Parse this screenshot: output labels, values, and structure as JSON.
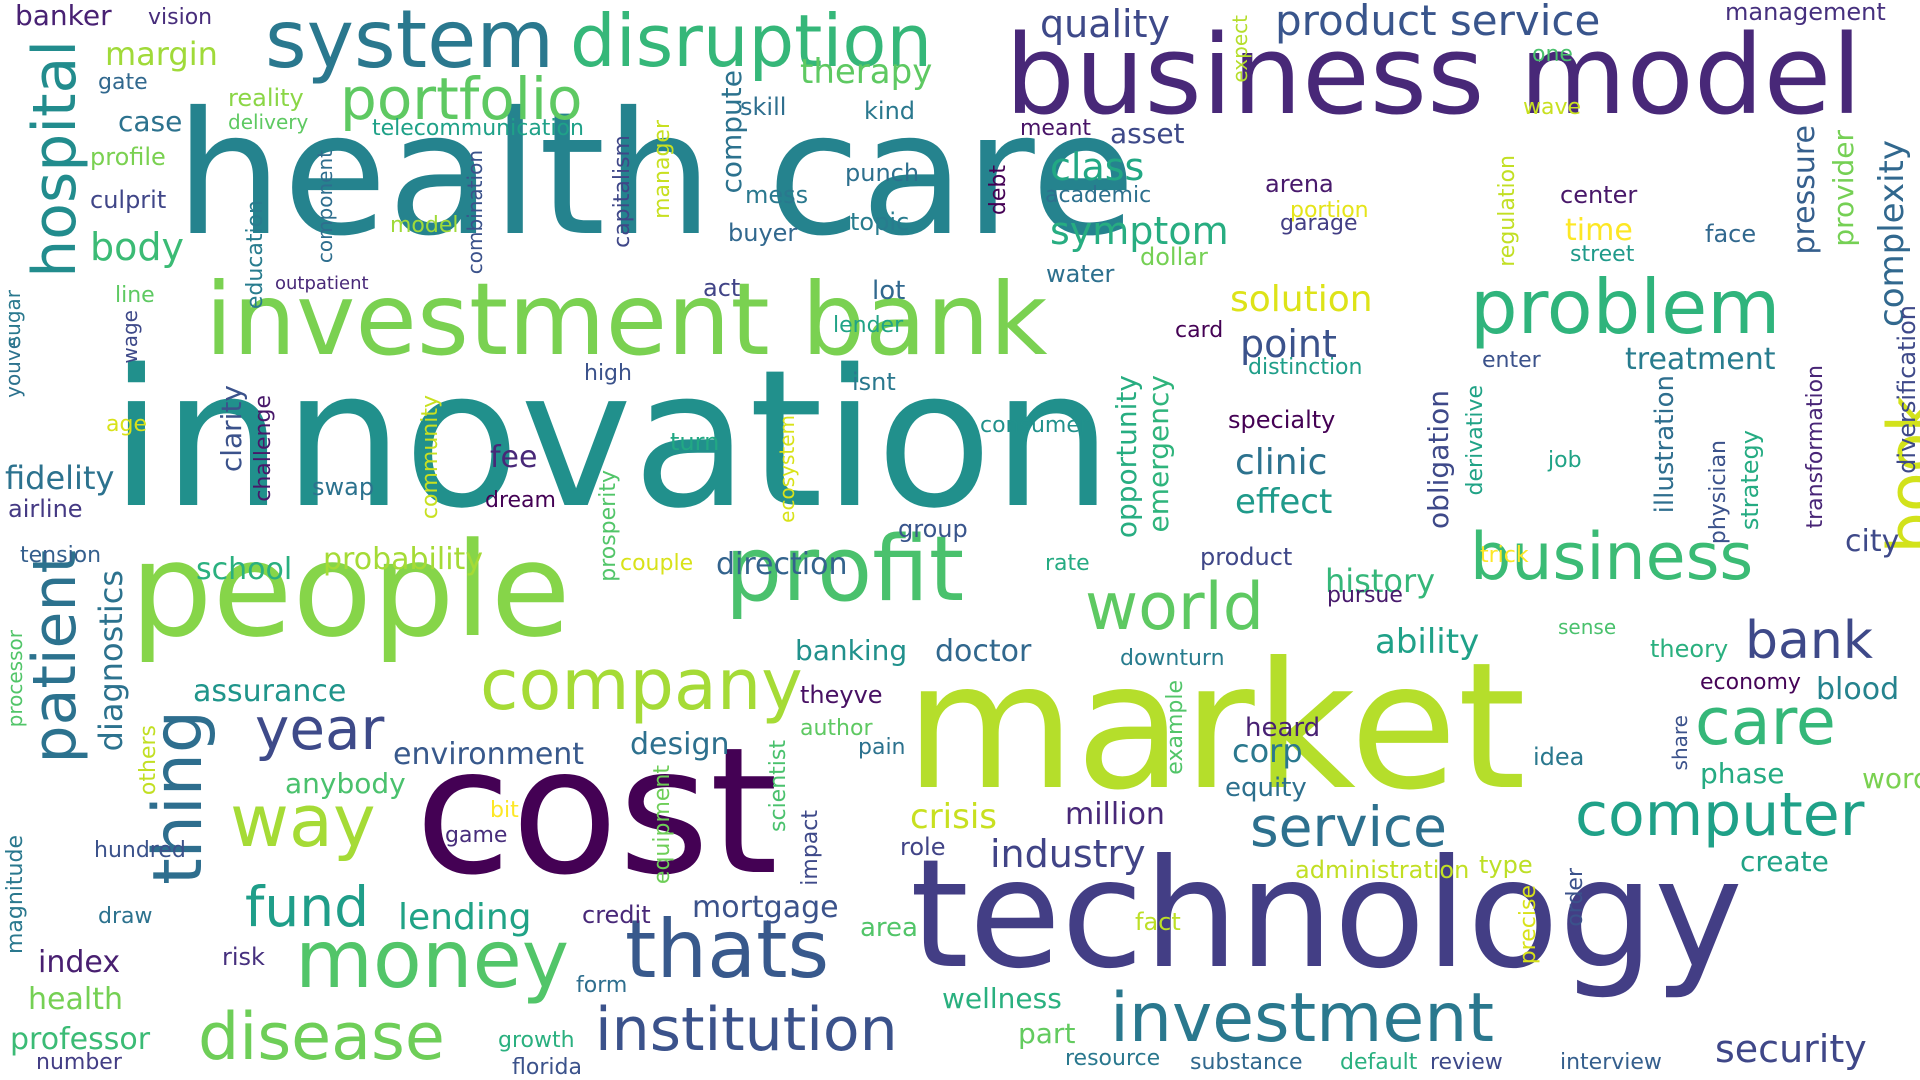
{
  "words": [
    {
      "text": "innovation",
      "color": "#21908c"
    },
    {
      "text": "health care",
      "color": "#25838e"
    },
    {
      "text": "business model",
      "color": "#482878"
    },
    {
      "text": "market",
      "color": "#b5de2b"
    },
    {
      "text": "cost",
      "color": "#440154"
    },
    {
      "text": "technology",
      "color": "#433e85"
    },
    {
      "text": "people",
      "color": "#86d549"
    },
    {
      "text": "investment bank",
      "color": "#7ad151"
    },
    {
      "text": "system",
      "color": "#2a788e"
    },
    {
      "text": "disruption",
      "color": "#35b779"
    },
    {
      "text": "portfolio",
      "color": "#5ec962"
    },
    {
      "text": "problem",
      "color": "#2fb47c"
    },
    {
      "text": "hospital",
      "color": "#228c8d"
    },
    {
      "text": "patient",
      "color": "#2c728e"
    },
    {
      "text": "thing",
      "color": "#2e6e8e"
    },
    {
      "text": "profit",
      "color": "#4ac16d"
    },
    {
      "text": "company",
      "color": "#a5db36"
    },
    {
      "text": "business",
      "color": "#3bbb75"
    },
    {
      "text": "world",
      "color": "#5ec962"
    },
    {
      "text": "bank",
      "color": "#3e4989"
    },
    {
      "text": "care",
      "color": "#35b779"
    },
    {
      "text": "computer",
      "color": "#1fa188"
    },
    {
      "text": "money",
      "color": "#52c569"
    },
    {
      "text": "thats",
      "color": "#38598c"
    },
    {
      "text": "way",
      "color": "#a5db36"
    },
    {
      "text": "year",
      "color": "#3e4a89"
    },
    {
      "text": "fund",
      "color": "#1f9e89"
    },
    {
      "text": "disease",
      "color": "#6ece58"
    },
    {
      "text": "institution",
      "color": "#3b528b"
    },
    {
      "text": "investment",
      "color": "#2a788e"
    },
    {
      "text": "service",
      "color": "#2d708e"
    },
    {
      "text": "security",
      "color": "#3f4788"
    },
    {
      "text": "industry",
      "color": "#414487"
    },
    {
      "text": "book",
      "color": "#d2e21b"
    },
    {
      "text": "complexity",
      "color": "#31688e"
    },
    {
      "text": "pressure",
      "color": "#355f8d"
    },
    {
      "text": "provider",
      "color": "#75d054"
    },
    {
      "text": "diagnostics",
      "color": "#2c728e"
    },
    {
      "text": "quality",
      "color": "#3e4989"
    },
    {
      "text": "product service",
      "color": "#39558c"
    },
    {
      "text": "management",
      "color": "#46307e"
    },
    {
      "text": "banker",
      "color": "#482173"
    },
    {
      "text": "vision",
      "color": "#472d7b"
    },
    {
      "text": "margin",
      "color": "#a0da39"
    },
    {
      "text": "therapy",
      "color": "#5ec962"
    },
    {
      "text": "gate",
      "color": "#31688e"
    },
    {
      "text": "reality",
      "color": "#8bd646"
    },
    {
      "text": "delivery",
      "color": "#5ec962"
    },
    {
      "text": "case",
      "color": "#2c728e"
    },
    {
      "text": "telecommunication",
      "color": "#1fa188"
    },
    {
      "text": "profile",
      "color": "#7ad151"
    },
    {
      "text": "culprit",
      "color": "#404688"
    },
    {
      "text": "body",
      "color": "#3bbb75"
    },
    {
      "text": "class",
      "color": "#22a884"
    },
    {
      "text": "symptom",
      "color": "#27ad81"
    },
    {
      "text": "solution",
      "color": "#dde318"
    },
    {
      "text": "point",
      "color": "#3b528b"
    },
    {
      "text": "treatment",
      "color": "#287c8e"
    },
    {
      "text": "clinic",
      "color": "#2c728e"
    },
    {
      "text": "effect",
      "color": "#1f9a8a"
    },
    {
      "text": "fidelity",
      "color": "#2c728e"
    },
    {
      "text": "airline",
      "color": "#443983"
    },
    {
      "text": "tension",
      "color": "#355f8d"
    },
    {
      "text": "school",
      "color": "#2ab07f"
    },
    {
      "text": "probability",
      "color": "#a5db36"
    },
    {
      "text": "direction",
      "color": "#33638d"
    },
    {
      "text": "history",
      "color": "#35b779"
    },
    {
      "text": "ability",
      "color": "#1fa188"
    },
    {
      "text": "city",
      "color": "#3e4989"
    },
    {
      "text": "assurance",
      "color": "#1f958b"
    },
    {
      "text": "banking",
      "color": "#21918c"
    },
    {
      "text": "doctor",
      "color": "#31688e"
    },
    {
      "text": "environment",
      "color": "#38598c"
    },
    {
      "text": "design",
      "color": "#2d708e"
    },
    {
      "text": "anybody",
      "color": "#4ac16d"
    },
    {
      "text": "crisis",
      "color": "#c8e020"
    },
    {
      "text": "million",
      "color": "#482878"
    },
    {
      "text": "lending",
      "color": "#20a386"
    },
    {
      "text": "mortgage",
      "color": "#3b528b"
    },
    {
      "text": "index",
      "color": "#481f70"
    },
    {
      "text": "health",
      "color": "#75d054"
    },
    {
      "text": "professor",
      "color": "#3bbb75"
    },
    {
      "text": "number",
      "color": "#433e85"
    },
    {
      "text": "growth",
      "color": "#2ab07f"
    },
    {
      "text": "florida",
      "color": "#3b528b"
    },
    {
      "text": "wellness",
      "color": "#2ab07f"
    },
    {
      "text": "part",
      "color": "#63cb5f"
    },
    {
      "text": "resource",
      "color": "#2a788e"
    },
    {
      "text": "substance",
      "color": "#31688e"
    },
    {
      "text": "default",
      "color": "#2ab07f"
    },
    {
      "text": "review",
      "color": "#3e4989"
    },
    {
      "text": "interview",
      "color": "#355f8d"
    },
    {
      "text": "phase",
      "color": "#25ab82"
    },
    {
      "text": "word",
      "color": "#7ad151"
    },
    {
      "text": "create",
      "color": "#20a386"
    },
    {
      "text": "blood",
      "color": "#25838e"
    },
    {
      "text": "economy",
      "color": "#450457"
    },
    {
      "text": "theory",
      "color": "#2ab07f"
    },
    {
      "text": "sense",
      "color": "#4ac16d"
    },
    {
      "text": "share",
      "color": "#3b528b"
    },
    {
      "text": "idea",
      "color": "#2a788e"
    },
    {
      "text": "corp",
      "color": "#2a788e"
    },
    {
      "text": "equity",
      "color": "#2d708e"
    },
    {
      "text": "heard",
      "color": "#482173"
    },
    {
      "text": "example",
      "color": "#52c569"
    },
    {
      "text": "administration",
      "color": "#c2df23"
    },
    {
      "text": "type",
      "color": "#bddf26"
    },
    {
      "text": "order",
      "color": "#3b528b"
    },
    {
      "text": "precise",
      "color": "#d8e219"
    },
    {
      "text": "fact",
      "color": "#bddf26"
    },
    {
      "text": "area",
      "color": "#52c569"
    },
    {
      "text": "credit",
      "color": "#482878"
    },
    {
      "text": "draw",
      "color": "#2c728e"
    },
    {
      "text": "risk",
      "color": "#46307e"
    },
    {
      "text": "form",
      "color": "#2e6e8e"
    },
    {
      "text": "hundred",
      "color": "#3b528b"
    },
    {
      "text": "magnitude",
      "color": "#2a788e"
    },
    {
      "text": "processor",
      "color": "#52c569"
    },
    {
      "text": "game",
      "color": "#472d7b"
    },
    {
      "text": "bit",
      "color": "#fde725"
    },
    {
      "text": "role",
      "color": "#414487"
    },
    {
      "text": "pain",
      "color": "#2c728e"
    },
    {
      "text": "author",
      "color": "#5ec962"
    },
    {
      "text": "theyve",
      "color": "#471063"
    },
    {
      "text": "downturn",
      "color": "#287c8e"
    },
    {
      "text": "others",
      "color": "#c2df23"
    },
    {
      "text": "equipment",
      "color": "#6ece58"
    },
    {
      "text": "scientist",
      "color": "#4ac16d"
    },
    {
      "text": "impact",
      "color": "#3e4989"
    },
    {
      "text": "couple",
      "color": "#d8e219"
    },
    {
      "text": "prosperity",
      "color": "#52c569"
    },
    {
      "text": "rate",
      "color": "#25ab82"
    },
    {
      "text": "product",
      "color": "#3f4788"
    },
    {
      "text": "pursue",
      "color": "#481a6c"
    },
    {
      "text": "trick",
      "color": "#fde725"
    },
    {
      "text": "group",
      "color": "#39558c"
    },
    {
      "text": "dream",
      "color": "#440154"
    },
    {
      "text": "swap",
      "color": "#2c728e"
    },
    {
      "text": "fee",
      "color": "#482878"
    },
    {
      "text": "clarity",
      "color": "#3b528b"
    },
    {
      "text": "challenge",
      "color": "#48186a"
    },
    {
      "text": "community",
      "color": "#c8e020"
    },
    {
      "text": "ecosystem",
      "color": "#d8e219"
    },
    {
      "text": "opportunity",
      "color": "#27ad81"
    },
    {
      "text": "emergency",
      "color": "#2fb47c"
    },
    {
      "text": "consumer",
      "color": "#21918c"
    },
    {
      "text": "specialty",
      "color": "#440154"
    },
    {
      "text": "obligation",
      "color": "#3e4989"
    },
    {
      "text": "derivative",
      "color": "#20a386"
    },
    {
      "text": "illustration",
      "color": "#2e6e8e"
    },
    {
      "text": "physician",
      "color": "#3b528b"
    },
    {
      "text": "strategy",
      "color": "#25ab82"
    },
    {
      "text": "transformation",
      "color": "#482576"
    },
    {
      "text": "diversification",
      "color": "#3e4989"
    },
    {
      "text": "job",
      "color": "#20a386"
    },
    {
      "text": "turn",
      "color": "#22a884"
    },
    {
      "text": "isnt",
      "color": "#2a788e"
    },
    {
      "text": "high",
      "color": "#3b528b"
    },
    {
      "text": "age",
      "color": "#d8e219"
    },
    {
      "text": "youve",
      "color": "#2c728e"
    },
    {
      "text": "sugar",
      "color": "#2a788e"
    },
    {
      "text": "wage",
      "color": "#3e4989"
    },
    {
      "text": "line",
      "color": "#5ec962"
    },
    {
      "text": "outpatient",
      "color": "#482878"
    },
    {
      "text": "education",
      "color": "#287c8e"
    },
    {
      "text": "component",
      "color": "#2e6e8e"
    },
    {
      "text": "combination",
      "color": "#3b528b"
    },
    {
      "text": "model",
      "color": "#a0da39"
    },
    {
      "text": "capitalism",
      "color": "#3f4788"
    },
    {
      "text": "manager",
      "color": "#c8e020"
    },
    {
      "text": "act",
      "color": "#414487"
    },
    {
      "text": "lot",
      "color": "#31688e"
    },
    {
      "text": "lender",
      "color": "#20a386"
    },
    {
      "text": "card",
      "color": "#440154"
    },
    {
      "text": "distinction",
      "color": "#1f9e89"
    },
    {
      "text": "enter",
      "color": "#3b528b"
    },
    {
      "text": "water",
      "color": "#2d708e"
    },
    {
      "text": "dollar",
      "color": "#75d054"
    },
    {
      "text": "academic",
      "color": "#2d708e"
    },
    {
      "text": "portion",
      "color": "#e5e419"
    },
    {
      "text": "garage",
      "color": "#433e85"
    },
    {
      "text": "arena",
      "color": "#481a6c"
    },
    {
      "text": "regulation",
      "color": "#c2df23"
    },
    {
      "text": "time",
      "color": "#fde725"
    },
    {
      "text": "street",
      "color": "#1f9a8a"
    },
    {
      "text": "face",
      "color": "#31688e"
    },
    {
      "text": "center",
      "color": "#481769"
    },
    {
      "text": "debt",
      "color": "#440154"
    },
    {
      "text": "meant",
      "color": "#481467"
    },
    {
      "text": "asset",
      "color": "#3e4989"
    },
    {
      "text": "kind",
      "color": "#2a788e"
    },
    {
      "text": "skill",
      "color": "#2e6e8e"
    },
    {
      "text": "punch",
      "color": "#2d708e"
    },
    {
      "text": "topic",
      "color": "#287c8e"
    },
    {
      "text": "compute",
      "color": "#2c728e"
    },
    {
      "text": "mess",
      "color": "#2a788e"
    },
    {
      "text": "buyer",
      "color": "#31688e"
    },
    {
      "text": "one",
      "color": "#4ac16d"
    },
    {
      "text": "expect",
      "color": "#b5de2b"
    },
    {
      "text": "wave",
      "color": "#c8e020"
    }
  ]
}
